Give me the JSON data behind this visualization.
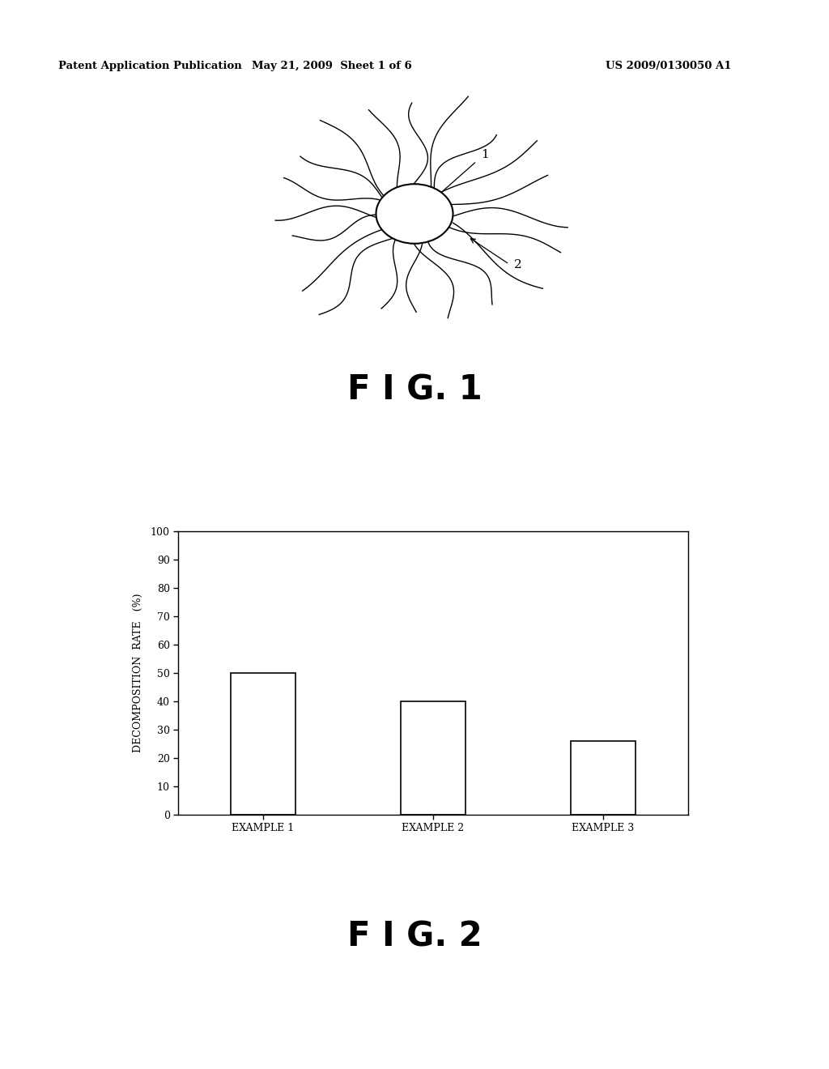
{
  "header_left": "Patent Application Publication",
  "header_mid": "May 21, 2009  Sheet 1 of 6",
  "header_right": "US 2009/0130050 A1",
  "fig1_label": "F I G. 1",
  "fig2_label": "F I G. 2",
  "label1": "1",
  "label2": "2",
  "bar_categories": [
    "EXAMPLE 1",
    "EXAMPLE 2",
    "EXAMPLE 3"
  ],
  "bar_values": [
    50,
    40,
    26
  ],
  "bar_color": "#ffffff",
  "bar_edgecolor": "#000000",
  "ylabel": "DECOMPOSITION  RATE   (%)",
  "ylim": [
    0,
    100
  ],
  "yticks": [
    0,
    10,
    20,
    30,
    40,
    50,
    60,
    70,
    80,
    90,
    100
  ],
  "background_color": "#ffffff",
  "text_color": "#000000",
  "header_fontsize": 9.5,
  "fig_label_fontsize": 30,
  "axis_fontsize": 9,
  "tick_fontsize": 9
}
